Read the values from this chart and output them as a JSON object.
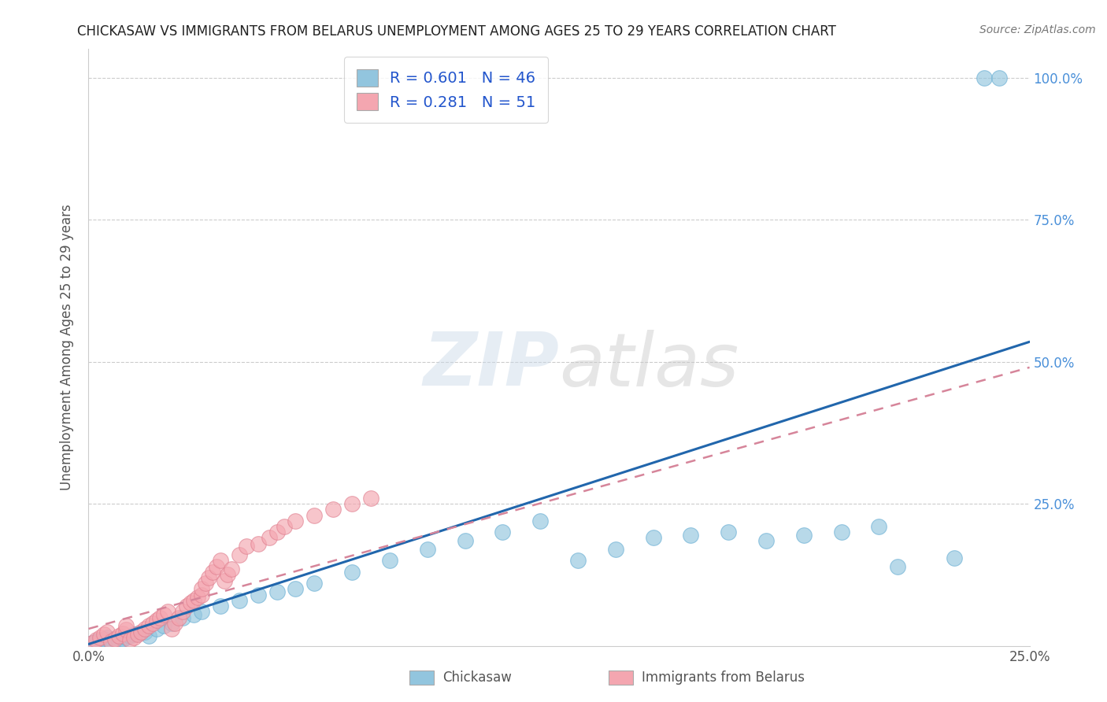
{
  "title": "CHICKASAW VS IMMIGRANTS FROM BELARUS UNEMPLOYMENT AMONG AGES 25 TO 29 YEARS CORRELATION CHART",
  "source": "Source: ZipAtlas.com",
  "ylabel": "Unemployment Among Ages 25 to 29 years",
  "xlim": [
    0.0,
    0.25
  ],
  "ylim": [
    0.0,
    1.05
  ],
  "xtick_positions": [
    0.0,
    0.05,
    0.1,
    0.15,
    0.2,
    0.25
  ],
  "xticklabels": [
    "0.0%",
    "",
    "",
    "",
    "",
    "25.0%"
  ],
  "ytick_positions": [
    0.0,
    0.25,
    0.5,
    0.75,
    1.0
  ],
  "yticklabels": [
    "",
    "25.0%",
    "50.0%",
    "75.0%",
    "100.0%"
  ],
  "chickasaw_R": 0.601,
  "chickasaw_N": 46,
  "belarus_R": 0.281,
  "belarus_N": 51,
  "chickasaw_color": "#92c5de",
  "belarus_color": "#f4a6b0",
  "chickasaw_line_color": "#2166ac",
  "belarus_line_color": "#d6859a",
  "watermark": "ZIPatlas",
  "legend_labels": [
    "Chickasaw",
    "Immigrants from Belarus"
  ],
  "chickasaw_x": [
    0.001,
    0.002,
    0.003,
    0.004,
    0.005,
    0.006,
    0.007,
    0.008,
    0.009,
    0.01,
    0.011,
    0.012,
    0.013,
    0.015,
    0.016,
    0.018,
    0.02,
    0.022,
    0.025,
    0.028,
    0.03,
    0.035,
    0.04,
    0.045,
    0.05,
    0.055,
    0.06,
    0.07,
    0.08,
    0.09,
    0.1,
    0.11,
    0.12,
    0.13,
    0.14,
    0.15,
    0.16,
    0.17,
    0.18,
    0.19,
    0.2,
    0.21,
    0.215,
    0.23,
    0.238,
    0.242
  ],
  "chickasaw_y": [
    0.005,
    0.008,
    0.01,
    0.012,
    0.015,
    0.005,
    0.01,
    0.008,
    0.012,
    0.015,
    0.018,
    0.02,
    0.022,
    0.025,
    0.018,
    0.03,
    0.035,
    0.04,
    0.05,
    0.055,
    0.06,
    0.07,
    0.08,
    0.09,
    0.095,
    0.1,
    0.11,
    0.13,
    0.15,
    0.17,
    0.185,
    0.2,
    0.22,
    0.15,
    0.17,
    0.19,
    0.195,
    0.2,
    0.185,
    0.195,
    0.2,
    0.21,
    0.14,
    0.155,
    1.0,
    1.0
  ],
  "belarus_x": [
    0.001,
    0.002,
    0.003,
    0.004,
    0.005,
    0.006,
    0.007,
    0.008,
    0.009,
    0.01,
    0.01,
    0.011,
    0.012,
    0.013,
    0.014,
    0.015,
    0.016,
    0.017,
    0.018,
    0.019,
    0.02,
    0.021,
    0.022,
    0.023,
    0.024,
    0.025,
    0.026,
    0.027,
    0.028,
    0.029,
    0.03,
    0.03,
    0.031,
    0.032,
    0.033,
    0.034,
    0.035,
    0.036,
    0.037,
    0.038,
    0.04,
    0.042,
    0.045,
    0.048,
    0.05,
    0.052,
    0.055,
    0.06,
    0.065,
    0.07,
    0.075
  ],
  "belarus_y": [
    0.005,
    0.01,
    0.015,
    0.02,
    0.025,
    0.008,
    0.012,
    0.018,
    0.022,
    0.028,
    0.035,
    0.01,
    0.015,
    0.02,
    0.025,
    0.03,
    0.035,
    0.04,
    0.045,
    0.05,
    0.055,
    0.06,
    0.03,
    0.04,
    0.05,
    0.06,
    0.07,
    0.075,
    0.08,
    0.085,
    0.09,
    0.1,
    0.11,
    0.12,
    0.13,
    0.14,
    0.15,
    0.115,
    0.125,
    0.135,
    0.16,
    0.175,
    0.18,
    0.19,
    0.2,
    0.21,
    0.22,
    0.23,
    0.24,
    0.25,
    0.26
  ],
  "chick_line_x0": 0.0,
  "chick_line_y0": 0.003,
  "chick_line_x1": 0.25,
  "chick_line_y1": 0.535,
  "bel_line_x0": 0.0,
  "bel_line_y0": 0.03,
  "bel_line_x1": 0.25,
  "bel_line_y1": 0.49
}
